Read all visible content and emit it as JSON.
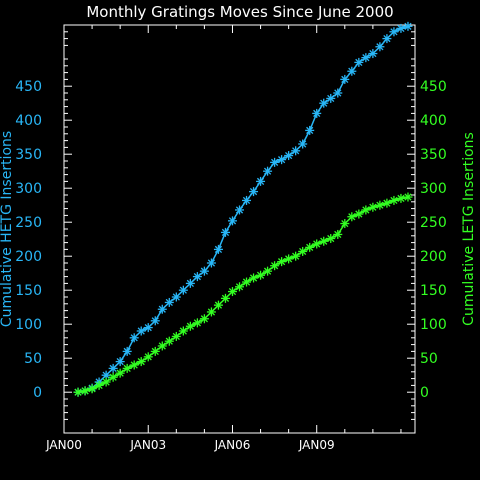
{
  "chart_data": {
    "type": "line",
    "title": "Monthly Gratings Moves Since June 2000",
    "ylabel_left": "Cumulative HETG Insertions",
    "ylabel_right": "Cumulative LETG Insertions",
    "x_tick_labels": [
      "JAN00",
      "JAN03",
      "JAN06",
      "JAN09"
    ],
    "x_tick_values": [
      2000.0,
      2003.0,
      2006.0,
      2009.0
    ],
    "xlim": [
      2000.0,
      2012.5
    ],
    "ylim": [
      -60,
      540
    ],
    "y_ticks": [
      0,
      50,
      100,
      150,
      200,
      250,
      300,
      350,
      400,
      450
    ],
    "grid": false,
    "colors": {
      "background": "#000000",
      "axes": "#ffffff",
      "hetg": "#29b6f6",
      "letg": "#33ff22"
    },
    "series": [
      {
        "name": "HETG",
        "axis": "left",
        "marker": "asterisk",
        "x": [
          2000.5,
          2000.75,
          2001.0,
          2001.25,
          2001.5,
          2001.75,
          2002.0,
          2002.25,
          2002.5,
          2002.75,
          2003.0,
          2003.25,
          2003.5,
          2003.75,
          2004.0,
          2004.25,
          2004.5,
          2004.75,
          2005.0,
          2005.25,
          2005.5,
          2005.75,
          2006.0,
          2006.25,
          2006.5,
          2006.75,
          2007.0,
          2007.25,
          2007.5,
          2007.75,
          2008.0,
          2008.25,
          2008.5,
          2008.75,
          2009.0,
          2009.25,
          2009.5,
          2009.75,
          2010.0,
          2010.25,
          2010.5,
          2010.75,
          2011.0,
          2011.25,
          2011.5,
          2011.75,
          2012.0,
          2012.25
        ],
        "y": [
          0,
          2,
          6,
          15,
          25,
          35,
          45,
          60,
          80,
          90,
          95,
          105,
          122,
          132,
          140,
          150,
          160,
          170,
          178,
          190,
          210,
          235,
          252,
          268,
          282,
          295,
          310,
          325,
          338,
          342,
          348,
          355,
          365,
          385,
          410,
          425,
          432,
          440,
          460,
          472,
          485,
          492,
          498,
          508,
          520,
          530,
          535,
          538
        ]
      },
      {
        "name": "LETG",
        "axis": "right",
        "marker": "asterisk",
        "x": [
          2000.5,
          2000.75,
          2001.0,
          2001.25,
          2001.5,
          2001.75,
          2002.0,
          2002.25,
          2002.5,
          2002.75,
          2003.0,
          2003.25,
          2003.5,
          2003.75,
          2004.0,
          2004.25,
          2004.5,
          2004.75,
          2005.0,
          2005.25,
          2005.5,
          2005.75,
          2006.0,
          2006.25,
          2006.5,
          2006.75,
          2007.0,
          2007.25,
          2007.5,
          2007.75,
          2008.0,
          2008.25,
          2008.5,
          2008.75,
          2009.0,
          2009.25,
          2009.5,
          2009.75,
          2010.0,
          2010.25,
          2010.5,
          2010.75,
          2011.0,
          2011.25,
          2011.5,
          2011.75,
          2012.0,
          2012.25
        ],
        "y": [
          0,
          2,
          5,
          10,
          15,
          22,
          28,
          35,
          40,
          45,
          52,
          60,
          68,
          75,
          82,
          90,
          97,
          102,
          108,
          118,
          128,
          138,
          148,
          155,
          162,
          168,
          172,
          178,
          186,
          192,
          196,
          200,
          207,
          213,
          218,
          222,
          226,
          232,
          248,
          258,
          262,
          268,
          272,
          275,
          278,
          282,
          285,
          287
        ]
      }
    ]
  }
}
